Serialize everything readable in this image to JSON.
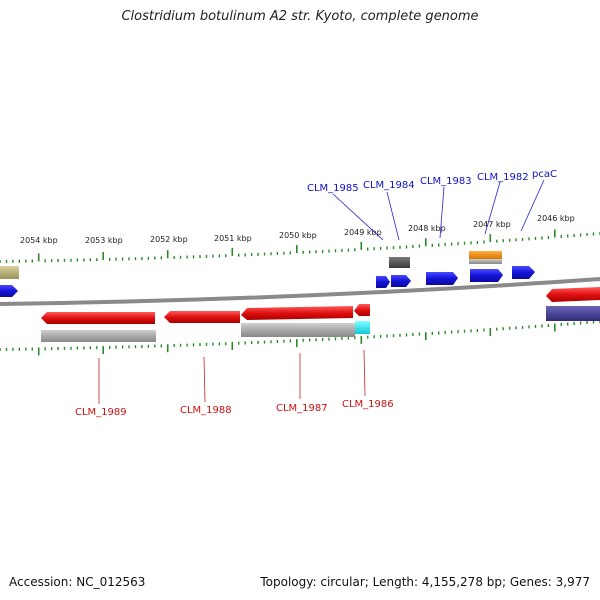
{
  "title": "Clostridium botulinum A2 str. Kyoto, complete genome",
  "ruler": {
    "labels": [
      "2054 kbp",
      "2053 kbp",
      "2052 kbp",
      "2051 kbp",
      "2050 kbp",
      "2049 kbp",
      "2048 kbp",
      "2047 kbp",
      "2046 kbp"
    ]
  },
  "genes_top": [
    "CLM_1985",
    "CLM_1984",
    "CLM_1983",
    "CLM_1982",
    "pcaC"
  ],
  "genes_bottom": [
    "CLM_1989",
    "CLM_1988",
    "CLM_1987",
    "CLM_1986"
  ],
  "colors": {
    "forward_gene": "#1414d8",
    "reverse_gene": "#e01010",
    "rna_gray": "#a8a8a8",
    "cyan_feature": "#22e6ee",
    "orange_feature": "#f0900c",
    "dark_feature": "#505050",
    "olive_feature": "#b8b074",
    "purple_feature": "#4a4494",
    "backbone": "#8a8a8a",
    "tick": "#2a8a2a",
    "label_blue": "#1010c8",
    "label_red": "#cc1111"
  },
  "footer": {
    "accession": "Accession: NC_012563",
    "summary": "Topology: circular; Length: 4,155,278 bp; Genes: 3,977"
  }
}
